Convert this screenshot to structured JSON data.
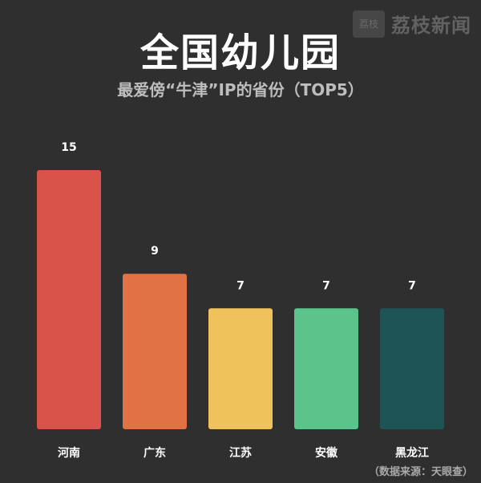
{
  "watermark": {
    "logo_icon": "litchi-logo-icon",
    "logo_text": "荔枝",
    "text": "荔枝新闻"
  },
  "title": "全国幼儿园",
  "subtitle": "最爱傍“牛津”IP的省份（TOP5）",
  "source": "（数据来源：天眼查）",
  "chart_data": {
    "type": "bar",
    "title": "全国幼儿园",
    "subtitle": "最爱傍“牛津”IP的省份（TOP5）",
    "categories": [
      "河南",
      "广东",
      "江苏",
      "安徽",
      "黑龙江"
    ],
    "values": [
      15,
      9,
      7,
      7,
      7
    ],
    "colors": [
      "#d9534b",
      "#e07245",
      "#f0c25c",
      "#5ac48b",
      "#1f5456"
    ],
    "xlabel": "",
    "ylabel": "",
    "ylim": [
      0,
      15
    ],
    "grid": false,
    "legend": "none",
    "data_labels": true
  }
}
